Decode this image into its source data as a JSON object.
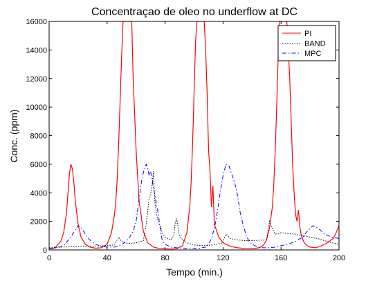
{
  "chart_data": {
    "type": "line",
    "title": "Concentraçao de oleo no underflow at DC",
    "xlabel": "Tempo (min.)",
    "ylabel": "Conc. (ppm)",
    "xlim": [
      0,
      200
    ],
    "ylim": [
      0,
      16000
    ],
    "xticks": [
      0,
      40,
      80,
      120,
      160,
      200
    ],
    "yticks": [
      0,
      2000,
      4000,
      6000,
      8000,
      10000,
      12000,
      14000,
      16000
    ],
    "xtick_labels": [
      "0",
      "40",
      "80",
      "120",
      "160",
      "200"
    ],
    "ytick_labels": [
      "0",
      "2000",
      "4000",
      "6000",
      "8000",
      "10000",
      "12000",
      "14000",
      "16000"
    ],
    "grid": false,
    "legend_position": "top-right",
    "series": [
      {
        "name": "PI",
        "color": "#ff0000",
        "style": "solid",
        "x": [
          0,
          4,
          8,
          10,
          12,
          13,
          14,
          15,
          16,
          17,
          18,
          20,
          22,
          25,
          28,
          32,
          36,
          40,
          43,
          45,
          46,
          47,
          48,
          49,
          50,
          51,
          52,
          53,
          54,
          55,
          56,
          57,
          58,
          60,
          62,
          65,
          68,
          72,
          76,
          80,
          84,
          88,
          92,
          95,
          97,
          98,
          99,
          100,
          101,
          102,
          103,
          104,
          105,
          106,
          107,
          108,
          109,
          110,
          111,
          112,
          113,
          114,
          115,
          117,
          120,
          125,
          130,
          135,
          140,
          145,
          148,
          150,
          152,
          154,
          155,
          156,
          157,
          158,
          159,
          160,
          161,
          162,
          163,
          164,
          165,
          166,
          167,
          168,
          169,
          170,
          171,
          172,
          173,
          174,
          176,
          178,
          180,
          184,
          188,
          192,
          196,
          198,
          200
        ],
        "y": [
          50,
          150,
          600,
          1200,
          2600,
          4000,
          5300,
          6000,
          5700,
          4800,
          3500,
          1800,
          900,
          400,
          200,
          120,
          150,
          400,
          1200,
          2400,
          3400,
          5000,
          7500,
          10500,
          13500,
          16000,
          16000,
          16000,
          16000,
          16000,
          16000,
          16000,
          12000,
          7000,
          3500,
          1300,
          500,
          200,
          100,
          80,
          60,
          80,
          300,
          1200,
          3000,
          4800,
          7500,
          11000,
          14500,
          16000,
          16000,
          16000,
          16000,
          16000,
          16000,
          14000,
          11000,
          7000,
          5500,
          3000,
          4500,
          1800,
          1500,
          900,
          500,
          250,
          150,
          100,
          90,
          150,
          350,
          700,
          1500,
          3000,
          4600,
          7000,
          10000,
          13500,
          16000,
          16000,
          16000,
          16000,
          16000,
          16000,
          14000,
          12000,
          9000,
          6000,
          4000,
          2500,
          2000,
          2800,
          1600,
          1000,
          500,
          300,
          200,
          150,
          300,
          500,
          800,
          1200,
          1700
        ]
      },
      {
        "name": "BAND",
        "color": "#000000",
        "style": "dotted",
        "x": [
          0,
          5,
          10,
          15,
          20,
          25,
          30,
          35,
          40,
          45,
          48,
          50,
          52,
          55,
          60,
          65,
          67,
          68,
          69,
          70,
          71,
          72,
          73,
          74,
          75,
          76,
          77,
          78,
          80,
          84,
          86,
          87,
          88,
          90,
          95,
          100,
          105,
          110,
          115,
          120,
          121,
          122,
          125,
          130,
          135,
          140,
          145,
          150,
          152,
          154,
          156,
          160,
          165,
          170,
          175,
          180,
          185,
          190,
          195,
          200
        ],
        "y": [
          150,
          180,
          200,
          220,
          230,
          240,
          260,
          280,
          300,
          350,
          900,
          600,
          500,
          450,
          500,
          650,
          1800,
          2700,
          3600,
          3900,
          4500,
          5500,
          3300,
          2600,
          2100,
          1800,
          1600,
          1200,
          900,
          700,
          1000,
          1900,
          2200,
          900,
          500,
          350,
          300,
          320,
          380,
          500,
          900,
          1100,
          800,
          700,
          650,
          650,
          680,
          700,
          2000,
          1500,
          1100,
          1200,
          1150,
          1100,
          1000,
          900,
          800,
          650,
          500,
          400
        ]
      },
      {
        "name": "MPC",
        "color": "#0000ff",
        "style": "dashdot",
        "x": [
          0,
          5,
          10,
          15,
          18,
          20,
          22,
          25,
          28,
          32,
          36,
          40,
          45,
          50,
          55,
          58,
          60,
          62,
          64,
          66,
          67,
          68,
          69,
          70,
          71,
          72,
          73,
          74,
          75,
          76,
          77,
          78,
          80,
          84,
          88,
          92,
          96,
          100,
          104,
          108,
          110,
          112,
          114,
          116,
          118,
          120,
          122,
          124,
          126,
          128,
          130,
          132,
          134,
          136,
          138,
          140,
          144,
          148,
          152,
          156,
          160,
          165,
          170,
          175,
          178,
          182,
          186,
          190,
          195,
          200
        ],
        "y": [
          80,
          150,
          300,
          900,
          1400,
          1700,
          1600,
          1100,
          700,
          400,
          250,
          200,
          200,
          350,
          800,
          1300,
          2000,
          3500,
          5000,
          5800,
          6000,
          5700,
          5200,
          5500,
          5000,
          4300,
          3800,
          3200,
          2700,
          2000,
          1200,
          700,
          400,
          200,
          150,
          120,
          100,
          100,
          120,
          200,
          400,
          800,
          1500,
          2600,
          4000,
          5200,
          6000,
          5900,
          5300,
          4700,
          3800,
          2500,
          1700,
          1000,
          600,
          400,
          200,
          150,
          150,
          200,
          300,
          400,
          600,
          900,
          1300,
          1700,
          1500,
          1100,
          900,
          800
        ]
      }
    ]
  }
}
